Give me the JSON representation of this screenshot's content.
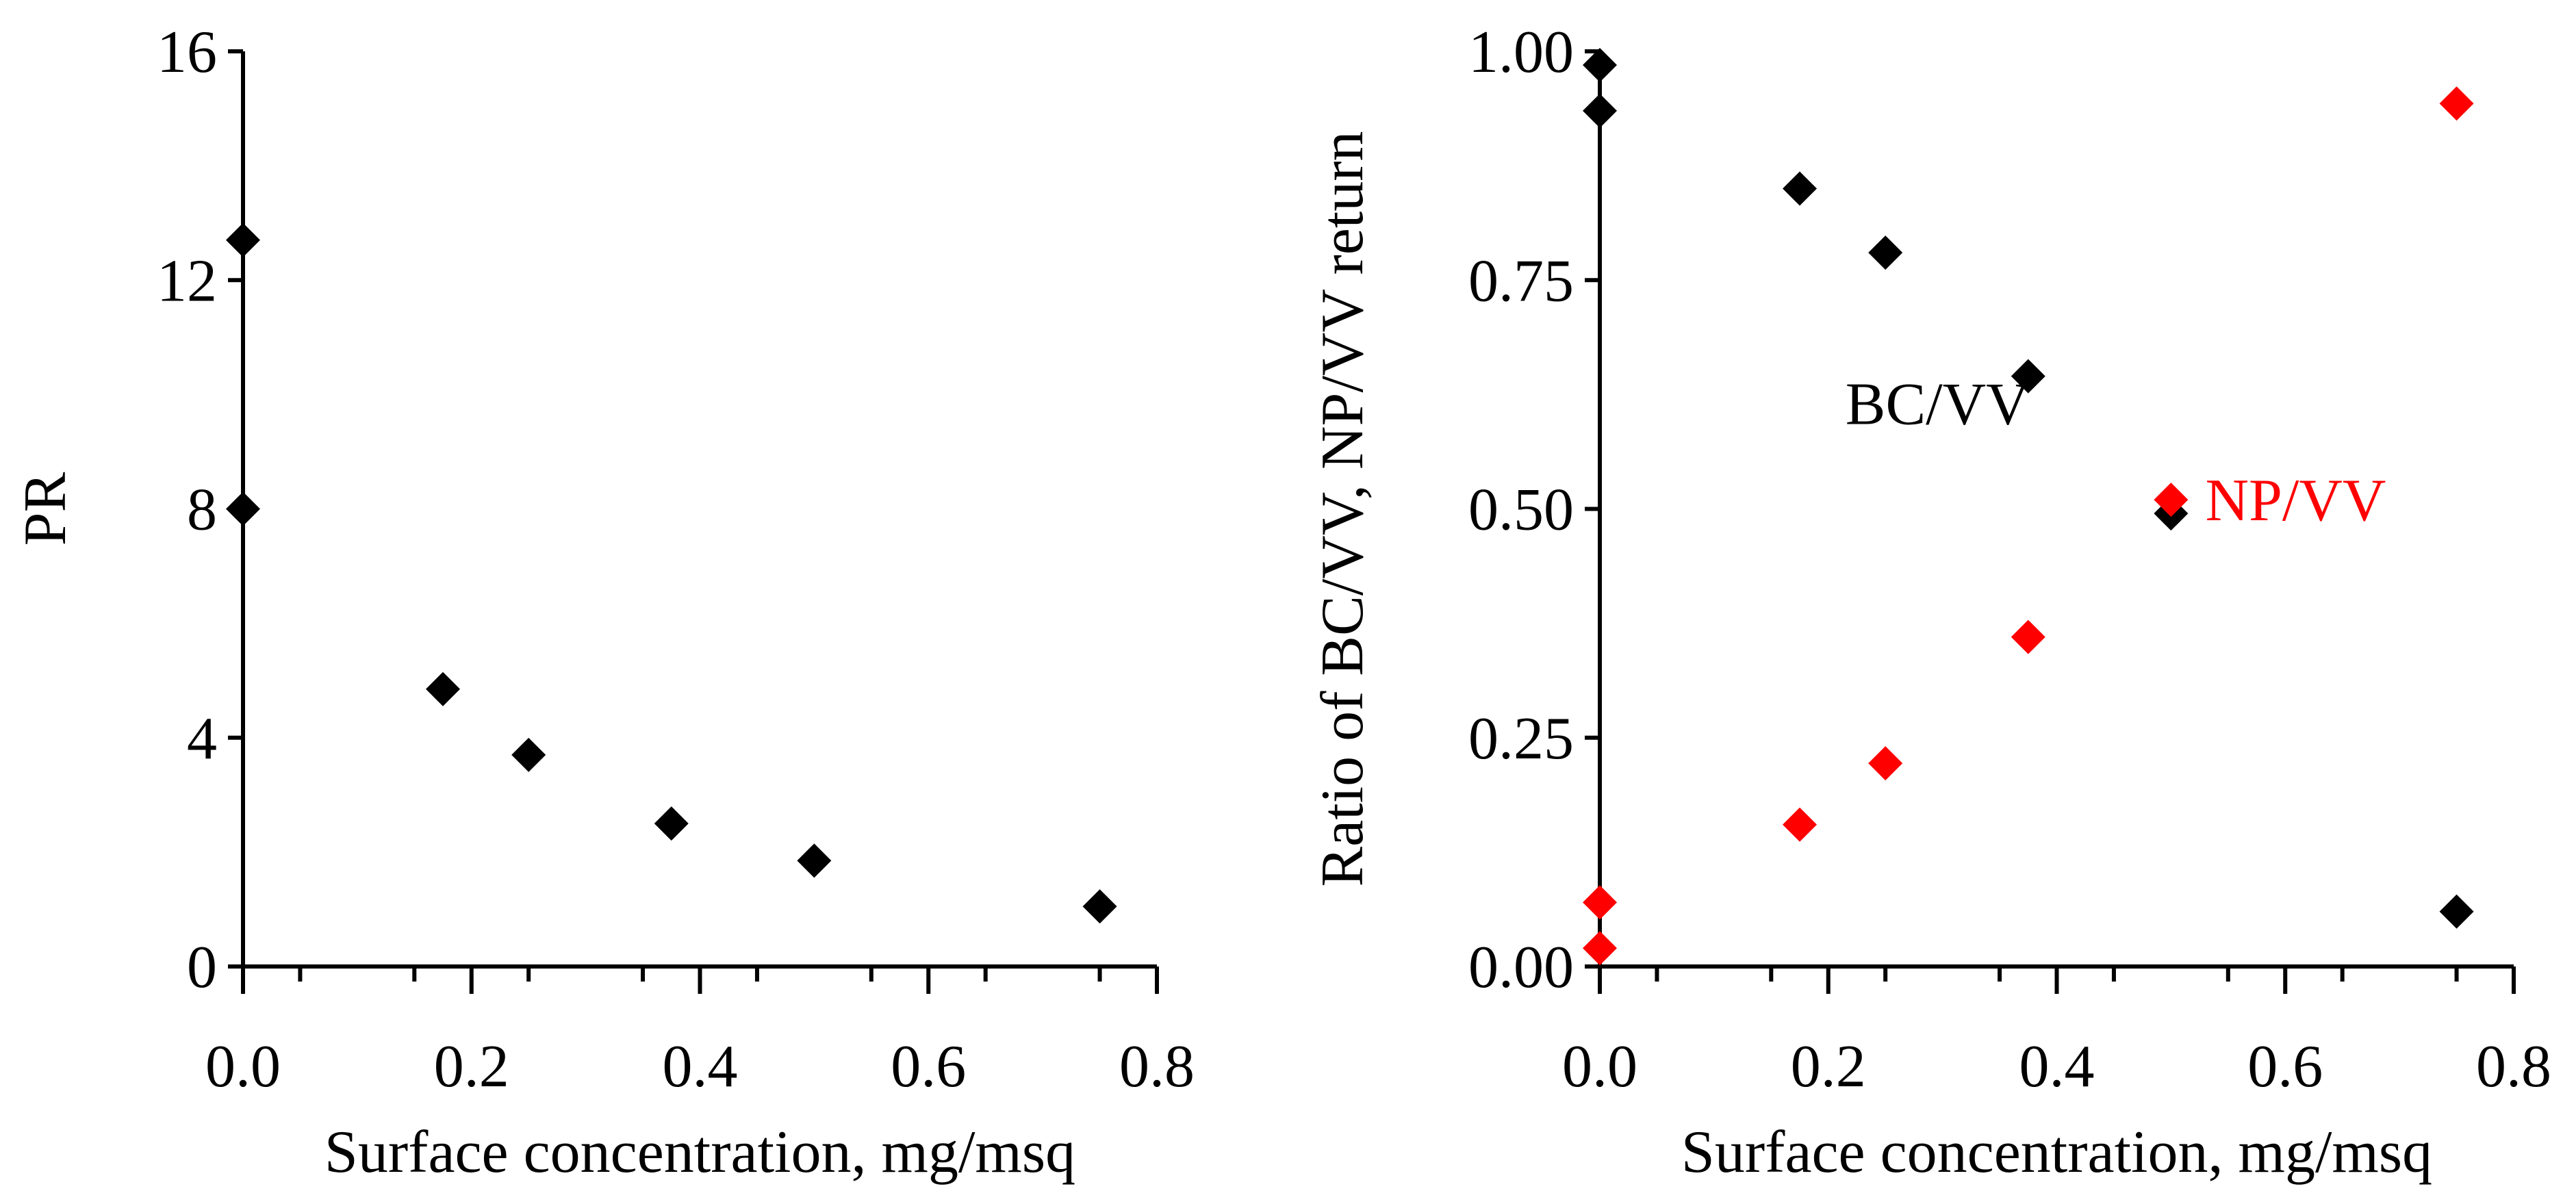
{
  "chart_data": [
    {
      "type": "scatter",
      "title": "",
      "xlabel": "Surface concentration, mg/msq",
      "ylabel": "PR",
      "xlim": [
        0.0,
        0.8
      ],
      "ylim": [
        0,
        16
      ],
      "x_ticks": [
        "0.0",
        "0.2",
        "0.4",
        "0.6",
        "0.8"
      ],
      "y_ticks": [
        "0",
        "4",
        "8",
        "12",
        "16"
      ],
      "x_tick_values": [
        0.0,
        0.2,
        0.4,
        0.6,
        0.8
      ],
      "y_tick_values": [
        0,
        4,
        8,
        12,
        16
      ],
      "x_minor_step": 0.1,
      "grid": false,
      "series": [
        {
          "name": "PR",
          "color": "#000000",
          "marker": "diamond",
          "points": [
            {
              "x": 0.0,
              "y": 12.7
            },
            {
              "x": 0.0,
              "y": 8.0
            },
            {
              "x": 0.175,
              "y": 4.85
            },
            {
              "x": 0.25,
              "y": 3.7
            },
            {
              "x": 0.375,
              "y": 2.5
            },
            {
              "x": 0.5,
              "y": 1.85
            },
            {
              "x": 0.75,
              "y": 1.05
            }
          ]
        }
      ]
    },
    {
      "type": "scatter",
      "title": "",
      "xlabel": "Surface concentration, mg/msq",
      "ylabel": "Ratio of BC/VV, NP/VV return",
      "xlim": [
        0.0,
        0.8
      ],
      "ylim": [
        0.0,
        1.0
      ],
      "x_ticks": [
        "0.0",
        "0.2",
        "0.4",
        "0.6",
        "0.8"
      ],
      "y_ticks": [
        "0.00",
        "0.25",
        "0.50",
        "0.75",
        "1.00"
      ],
      "x_tick_values": [
        0.0,
        0.2,
        0.4,
        0.6,
        0.8
      ],
      "y_tick_values": [
        0.0,
        0.25,
        0.5,
        0.75,
        1.0
      ],
      "x_minor_step": 0.1,
      "grid": false,
      "series": [
        {
          "name": "BC/VV",
          "color": "#000000",
          "marker": "diamond",
          "points": [
            {
              "x": 0.0,
              "y": 0.985
            },
            {
              "x": 0.0,
              "y": 0.935
            },
            {
              "x": 0.175,
              "y": 0.85
            },
            {
              "x": 0.25,
              "y": 0.78
            },
            {
              "x": 0.375,
              "y": 0.645
            },
            {
              "x": 0.5,
              "y": 0.495
            },
            {
              "x": 0.75,
              "y": 0.06
            }
          ]
        },
        {
          "name": "NP/VV",
          "color": "#ff0000",
          "marker": "diamond",
          "points": [
            {
              "x": 0.0,
              "y": 0.07
            },
            {
              "x": 0.0,
              "y": 0.02
            },
            {
              "x": 0.175,
              "y": 0.155
            },
            {
              "x": 0.25,
              "y": 0.222
            },
            {
              "x": 0.375,
              "y": 0.36
            },
            {
              "x": 0.5,
              "y": 0.51
            },
            {
              "x": 0.75,
              "y": 0.943
            }
          ]
        }
      ],
      "annotations": [
        {
          "text": "BC/VV",
          "x": 0.215,
          "y": 0.615,
          "color": "#000000"
        },
        {
          "text": "NP/VV",
          "x": 0.53,
          "y": 0.51,
          "color": "#ff0000"
        }
      ]
    }
  ]
}
